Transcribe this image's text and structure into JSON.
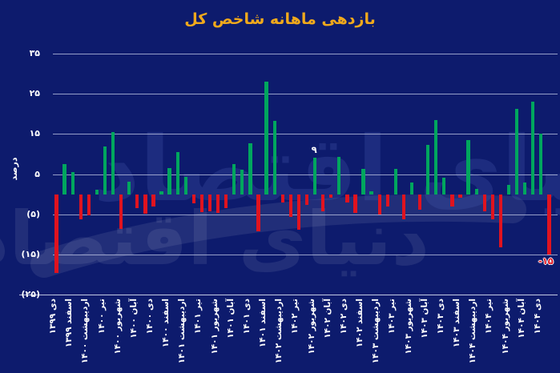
{
  "title": "بازدهی ماهانه شاخص کل",
  "watermark": "دنیای اقتصاد",
  "colors": {
    "background": "#0d1b6d",
    "title": "#f0a91c",
    "positive_bar": "#00a65e",
    "negative_bar": "#e0131f",
    "gridline": "#b9c0e0",
    "label_text": "#ffffff"
  },
  "y_axis": {
    "label": "درصد",
    "ticks": [
      {
        "label": "۳۵",
        "value": 35
      },
      {
        "label": "۲۵",
        "value": 25
      },
      {
        "label": "۱۵",
        "value": 15
      },
      {
        "label": "۵",
        "value": 5
      },
      {
        "label": "(۵)",
        "value": -5
      },
      {
        "label": "(۱۵)",
        "value": -15
      },
      {
        "label": "(۲۵)",
        "value": -25
      }
    ]
  },
  "chart_data": {
    "type": "bar",
    "title": "بازدهی ماهانه شاخص کل",
    "ylabel": "درصد",
    "ylim": [
      -25,
      35
    ],
    "grid": true,
    "x_tick_every": 2,
    "x_tick_labels": [
      "دی ۱۳۹۹",
      "اسفند ۱۳۹۹",
      "اردیبهشت ۱۴۰۰",
      "تیر ۱۴۰۰",
      "شهریور ۱۴۰۰",
      "آبان ۱۴۰۰",
      "دی ۱۴۰۰",
      "اسفند ۱۴۰۰",
      "اردیبهشت ۱۴۰۱",
      "تیر ۱۴۰۱",
      "شهریور ۱۴۰۱",
      "آبان ۱۴۰۱",
      "دی ۱۴۰۱",
      "اسفند ۱۴۰۱",
      "اردیبهشت ۱۴۰۲",
      "تیر ۱۴۰۲",
      "شهریور ۱۴۰۲",
      "آبان ۱۴۰۲",
      "دی ۱۴۰۲",
      "اسفند ۱۴۰۲",
      "اردیبهشت ۱۴۰۳",
      "تیر ۱۴۰۳",
      "شهریور ۱۴۰۳",
      "آبان ۱۴۰۳",
      "دی ۱۴۰۳",
      "اسفند ۱۴۰۳",
      "اردیبهشت ۱۴۰۴",
      "تیر ۱۴۰۴",
      "شهریور ۱۴۰۴",
      "آبان ۱۴۰۴",
      "دی ۱۴۰۴"
    ],
    "values": [
      -19.5,
      7.5,
      5.5,
      -6.3,
      -5.3,
      1.2,
      11.8,
      15.4,
      -8.7,
      3.2,
      -3.5,
      -4.8,
      -3.1,
      0.7,
      6.6,
      10.5,
      4.3,
      -2.2,
      -4.5,
      -4.2,
      -4.7,
      -3.4,
      7.6,
      6.1,
      12.7,
      -9.3,
      28.0,
      18.3,
      -2.0,
      -5.7,
      -8.8,
      -2.6,
      9.0,
      -4.3,
      -0.9,
      9.2,
      -2.1,
      -4.6,
      6.3,
      0.7,
      -5.0,
      -3.0,
      6.3,
      -6.3,
      2.9,
      -3.9,
      12.2,
      18.4,
      4.2,
      -3.0,
      -0.8,
      13.4,
      1.4,
      -4.2,
      -6.2,
      -13.1,
      2.4,
      21.2,
      3.0,
      23.1,
      15.0,
      -15.0
    ],
    "annotations": [
      {
        "bar_index": 32,
        "text": "۹",
        "style": "plain"
      },
      {
        "bar_index": 61,
        "text": "-۱۵",
        "style": "outlined"
      }
    ]
  }
}
